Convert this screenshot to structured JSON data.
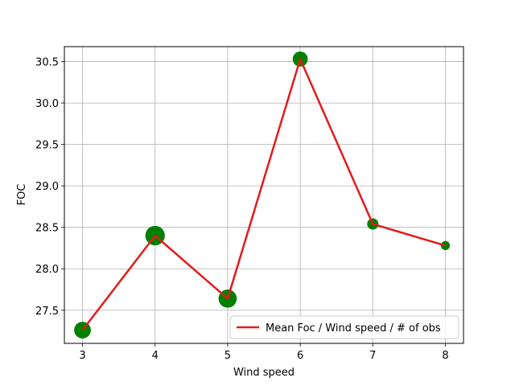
{
  "chart_data": {
    "type": "line",
    "title": "",
    "xlabel": "Wind speed",
    "ylabel": "FOC",
    "xlim": [
      2.75,
      8.25
    ],
    "ylim": [
      27.1,
      30.68
    ],
    "xticks": [
      3,
      4,
      5,
      6,
      7,
      8
    ],
    "yticks": [
      27.5,
      28.0,
      28.5,
      29.0,
      29.5,
      30.0,
      30.5
    ],
    "grid": true,
    "legend_position": "lower-right",
    "series": [
      {
        "name": "Mean Foc / Wind speed / # of obs",
        "color": "#e31a1c",
        "marker_color": "#008000",
        "x": [
          3,
          4,
          5,
          6,
          7,
          8
        ],
        "y": [
          27.26,
          28.4,
          27.64,
          30.53,
          28.54,
          28.28
        ],
        "marker_size_relative": [
          0.55,
          0.75,
          0.65,
          0.45,
          0.25,
          0.16
        ]
      }
    ]
  }
}
